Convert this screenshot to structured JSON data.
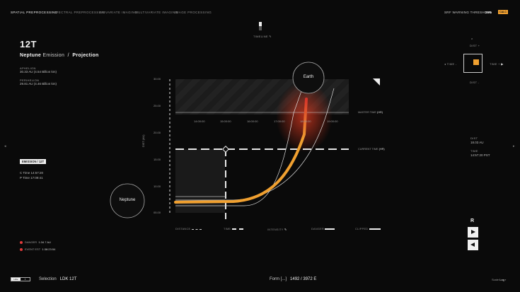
{
  "nav": {
    "items": [
      "Spatial Preprocessing",
      "Spectral Preprocessing",
      "Univariate Imaging",
      "Multivariate Imaging",
      "Image Processing"
    ],
    "warning_label": "SRF Warning Threshold",
    "warning_value": "29%",
    "warning_badge": "CALC"
  },
  "timeline_label": "Timeline",
  "header": {
    "code": "12T",
    "title_planet": "Neptune",
    "title_mid": "Emission",
    "title_sep": "/",
    "title_end": "Projection"
  },
  "stats": [
    {
      "label": "Aphelion",
      "value": "30.33 AU (4.54 Billion km)"
    },
    {
      "label": "Perihelion",
      "value": "29.81 AU (4.46 Billion km)"
    }
  ],
  "emission_badge": "Emission / 12T",
  "times": {
    "c": "C Time 14:57:20",
    "p": "P Time 17:09:41"
  },
  "alerts": [
    {
      "label": "Danger",
      "value": "1:34.7 AU",
      "color": "#e23b3b"
    },
    {
      "label": "Event Est",
      "value": "1:38:23:54",
      "color": "#e23b3b"
    }
  ],
  "chart_data": {
    "type": "line",
    "y_ticks": [
      "30.00",
      "25.00",
      "20.00",
      "15.00",
      "10.00",
      "05.00"
    ],
    "x_ticks": [
      "14:00:00",
      "15:00:00",
      "16:00:00",
      "17:00:00",
      "18:00:00",
      "19:00:00"
    ],
    "ylabel": "Dist",
    "ylabel_unit": "(AU)",
    "master_time_label": "Master Time",
    "master_time_unit": "(hr)",
    "current_time_label": "Current Time",
    "current_time_unit": "(hr)",
    "earth_label": "Earth",
    "neptune_label": "Neptune",
    "accent": "#f0a030",
    "danger": "#d83a2a"
  },
  "legend": [
    {
      "label": "Distance"
    },
    {
      "label": "Time"
    },
    {
      "label": "Intensity"
    },
    {
      "label": "Danger"
    },
    {
      "label": "Clipped"
    }
  ],
  "right_panel": {
    "dist_top": "Dist +",
    "time_left": "Time -",
    "time_right": "Time +",
    "dist_bottom": "Dist -",
    "dist_label": "Dist",
    "dist_value": "18.03 AU",
    "time_label": "Time",
    "time_value": "14:57:20 PST",
    "r_label": "R"
  },
  "footer": {
    "toggle_left": "Hide",
    "selection_label": "Selection",
    "selection_value": "LDK 12T",
    "form_label": "Form [...]",
    "form_value": "1492 / 3972 E",
    "scale_label": "Scale",
    "scale_value": "Log"
  }
}
